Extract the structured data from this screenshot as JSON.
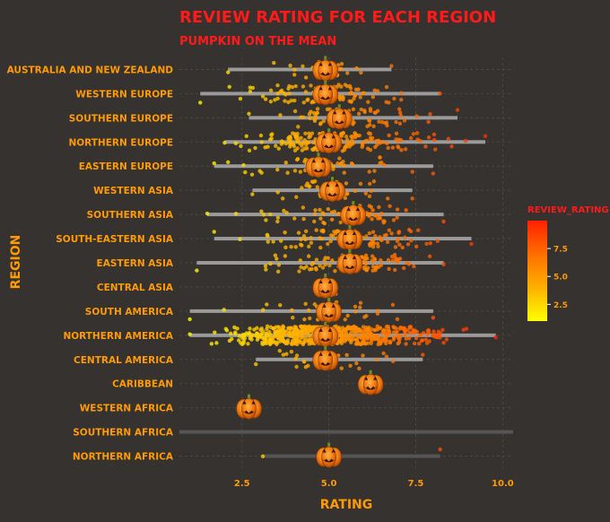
{
  "chart_data": {
    "type": "scatter",
    "title": "REVIEW RATING FOR EACH REGION",
    "subtitle": "PUMPKIN ON THE MEAN",
    "xlabel": "RATING",
    "ylabel": "REGION",
    "xlim": [
      0.7,
      10.3
    ],
    "xticks": [
      2.5,
      5.0,
      7.5,
      10.0
    ],
    "grid": true,
    "legend": {
      "title": "REVIEW_RATING",
      "position": "right",
      "ticks": [
        2.5,
        5.0,
        7.5
      ],
      "range": [
        1,
        10
      ],
      "colors": [
        "#ffff00",
        "#ffb000",
        "#ff7000",
        "#ff2000"
      ]
    },
    "colors": {
      "background": "#353230",
      "title": "#ff1a1a",
      "label": "#ff9a00",
      "range_bar": "#9a9a9a",
      "range_bar_dim": "#555555",
      "grid": "#4a4745"
    },
    "marker_icon": "pumpkin-icon",
    "regions": [
      {
        "name": "AUSTRALIA AND NEW ZEALAND",
        "min": 2.1,
        "max": 6.8,
        "mean": 4.9,
        "n": 25
      },
      {
        "name": "WESTERN EUROPE",
        "min": 1.3,
        "max": 8.2,
        "mean": 4.9,
        "n": 90
      },
      {
        "name": "SOUTHERN EUROPE",
        "min": 2.7,
        "max": 8.7,
        "mean": 5.3,
        "n": 70
      },
      {
        "name": "NORTHERN EUROPE",
        "min": 2.0,
        "max": 9.5,
        "mean": 5.0,
        "n": 170
      },
      {
        "name": "EASTERN EUROPE",
        "min": 1.7,
        "max": 8.0,
        "mean": 4.7,
        "n": 50
      },
      {
        "name": "WESTERN ASIA",
        "min": 2.8,
        "max": 7.4,
        "mean": 5.1,
        "n": 35
      },
      {
        "name": "SOUTHERN ASIA",
        "min": 1.5,
        "max": 8.3,
        "mean": 5.7,
        "n": 60
      },
      {
        "name": "SOUTH-EASTERN ASIA",
        "min": 1.7,
        "max": 9.1,
        "mean": 5.6,
        "n": 90
      },
      {
        "name": "EASTERN ASIA",
        "min": 1.2,
        "max": 8.3,
        "mean": 5.6,
        "n": 100
      },
      {
        "name": "CENTRAL ASIA",
        "min": 4.6,
        "max": 5.2,
        "mean": 4.9,
        "n": 3
      },
      {
        "name": "SOUTH AMERICA",
        "min": 1.0,
        "max": 8.0,
        "mean": 5.0,
        "n": 35
      },
      {
        "name": "NORTHERN AMERICA",
        "min": 1.0,
        "max": 9.8,
        "mean": 4.9,
        "n": 1400
      },
      {
        "name": "CENTRAL AMERICA",
        "min": 2.9,
        "max": 7.7,
        "mean": 4.9,
        "n": 30
      },
      {
        "name": "CARIBBEAN",
        "min": 6.2,
        "max": 6.2,
        "mean": 6.2,
        "n": 1
      },
      {
        "name": "WESTERN AFRICA",
        "min": 2.7,
        "max": 2.7,
        "mean": 2.7,
        "n": 1
      },
      {
        "name": "SOUTHERN AFRICA",
        "min": null,
        "max": null,
        "mean": null,
        "n": 0
      },
      {
        "name": "NORTHERN AFRICA",
        "min": 3.1,
        "max": 8.2,
        "mean": 5.0,
        "n": 2
      }
    ]
  }
}
